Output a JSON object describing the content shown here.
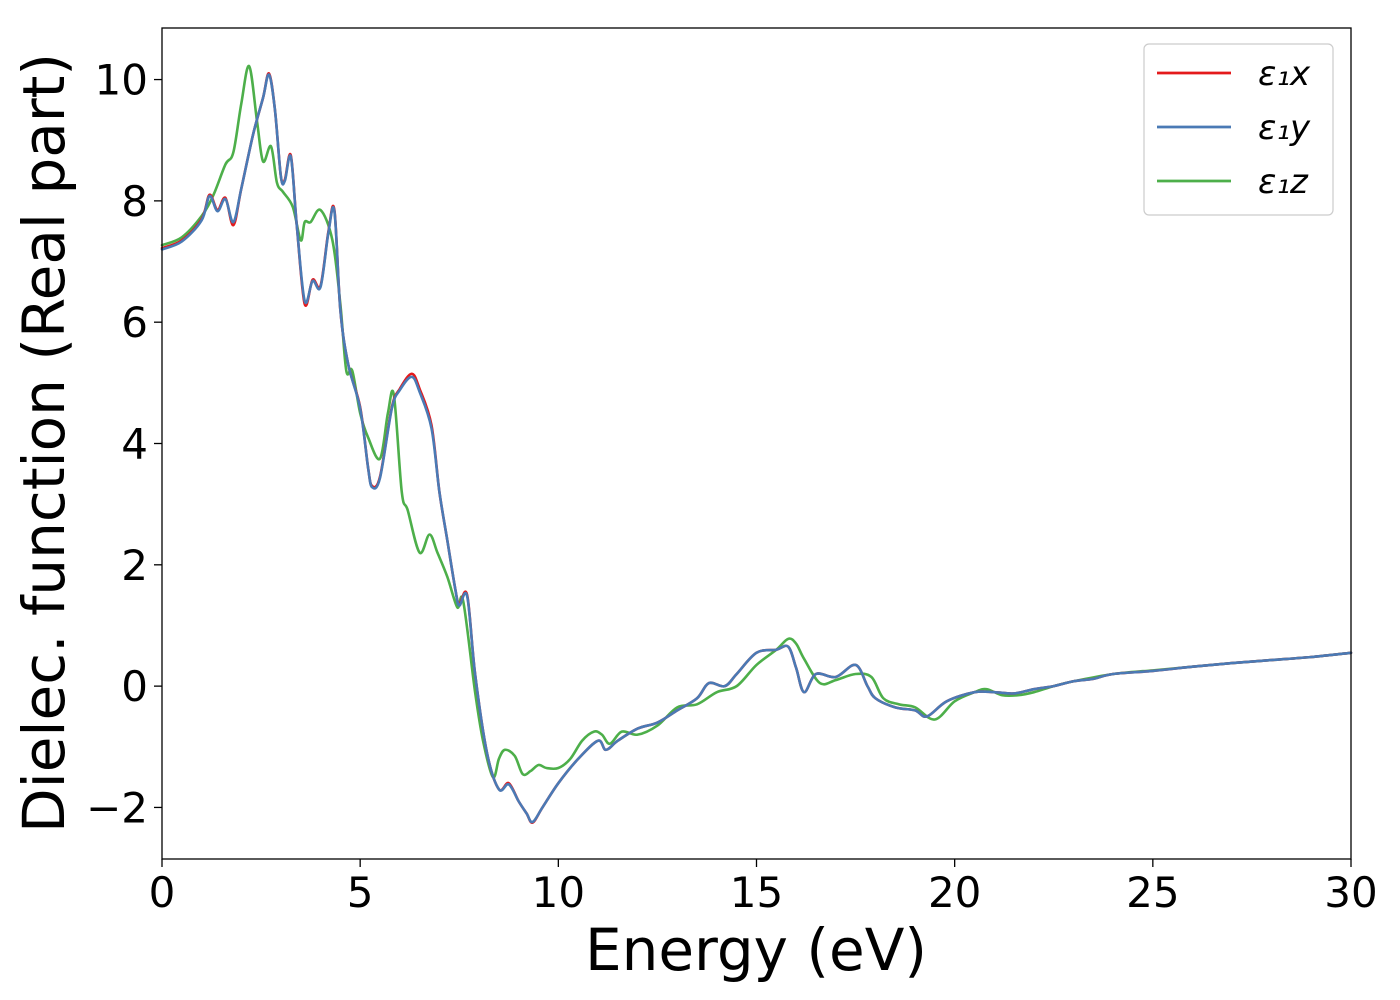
{
  "chart_data": {
    "type": "line",
    "xlabel": "Energy (eV)",
    "ylabel": "Dielec. function (Real part)",
    "xlim": [
      0,
      30
    ],
    "ylim": [
      -2.85,
      10.85
    ],
    "xticks": [
      0,
      5,
      10,
      15,
      20,
      25,
      30
    ],
    "xtick_labels": [
      "0",
      "5",
      "10",
      "15",
      "20",
      "25",
      "30"
    ],
    "yticks": [
      -2,
      0,
      2,
      4,
      6,
      8,
      10
    ],
    "ytick_labels": [
      "−2",
      "0",
      "2",
      "4",
      "6",
      "8",
      "10"
    ],
    "grid": false,
    "legend_position": "top-right",
    "series": [
      {
        "name": "ε₁x",
        "color": "#e41a1c",
        "x": [
          0,
          0.5,
          1.0,
          1.2,
          1.4,
          1.6,
          1.8,
          2.0,
          2.3,
          2.55,
          2.7,
          2.85,
          3.0,
          3.1,
          3.25,
          3.4,
          3.6,
          3.8,
          4.0,
          4.2,
          4.35,
          4.5,
          4.7,
          5.0,
          5.2,
          5.3,
          5.5,
          5.8,
          6.0,
          6.3,
          6.5,
          6.8,
          7.0,
          7.2,
          7.4,
          7.5,
          7.7,
          7.9,
          8.2,
          8.5,
          8.75,
          9.0,
          9.2,
          9.35,
          9.6,
          10.0,
          10.5,
          11.0,
          11.2,
          11.5,
          12.0,
          12.5,
          13.0,
          13.5,
          13.8,
          14.2,
          14.5,
          15.0,
          15.5,
          15.8,
          16.0,
          16.2,
          16.5,
          17.0,
          17.5,
          17.8,
          18.0,
          18.5,
          19.0,
          19.3,
          19.8,
          20.5,
          21.0,
          21.5,
          22.0,
          22.5,
          23.0,
          23.5,
          24.0,
          25.0,
          26.0,
          27.0,
          28.0,
          29.0,
          30.0
        ],
        "y": [
          7.22,
          7.35,
          7.7,
          8.1,
          7.85,
          8.05,
          7.6,
          8.2,
          9.1,
          9.7,
          10.1,
          9.5,
          8.4,
          8.35,
          8.75,
          7.6,
          6.3,
          6.7,
          6.6,
          7.5,
          7.85,
          6.2,
          5.3,
          4.6,
          3.6,
          3.3,
          3.45,
          4.6,
          4.9,
          5.15,
          4.9,
          4.3,
          3.2,
          2.4,
          1.6,
          1.35,
          1.5,
          0.2,
          -1.1,
          -1.7,
          -1.6,
          -1.9,
          -2.1,
          -2.25,
          -2.0,
          -1.6,
          -1.2,
          -0.9,
          -1.05,
          -0.9,
          -0.7,
          -0.6,
          -0.4,
          -0.2,
          0.05,
          0.0,
          0.2,
          0.55,
          0.6,
          0.65,
          0.3,
          -0.1,
          0.2,
          0.15,
          0.35,
          0.0,
          -0.2,
          -0.35,
          -0.4,
          -0.5,
          -0.25,
          -0.1,
          -0.1,
          -0.12,
          -0.05,
          0.0,
          0.08,
          0.12,
          0.2,
          0.25,
          0.32,
          0.38,
          0.43,
          0.48,
          0.55
        ]
      },
      {
        "name": "ε₁y",
        "color": "#4a7ab5",
        "x": [
          0,
          0.5,
          1.0,
          1.2,
          1.4,
          1.6,
          1.8,
          2.0,
          2.3,
          2.55,
          2.7,
          2.85,
          3.0,
          3.1,
          3.25,
          3.4,
          3.6,
          3.8,
          4.0,
          4.2,
          4.35,
          4.5,
          4.7,
          5.0,
          5.2,
          5.3,
          5.5,
          5.8,
          6.0,
          6.3,
          6.5,
          6.8,
          7.0,
          7.2,
          7.4,
          7.5,
          7.7,
          7.9,
          8.2,
          8.5,
          8.75,
          9.0,
          9.2,
          9.35,
          9.6,
          10.0,
          10.5,
          11.0,
          11.2,
          11.5,
          12.0,
          12.5,
          13.0,
          13.5,
          13.8,
          14.2,
          14.5,
          15.0,
          15.5,
          15.8,
          16.0,
          16.2,
          16.5,
          17.0,
          17.5,
          17.8,
          18.0,
          18.5,
          19.0,
          19.3,
          19.8,
          20.5,
          21.0,
          21.5,
          22.0,
          22.5,
          23.0,
          23.5,
          24.0,
          25.0,
          26.0,
          27.0,
          28.0,
          29.0,
          30.0
        ],
        "y": [
          7.2,
          7.33,
          7.68,
          8.08,
          7.83,
          8.03,
          7.65,
          8.2,
          9.1,
          9.7,
          10.08,
          9.5,
          8.4,
          8.33,
          8.73,
          7.6,
          6.35,
          6.68,
          6.58,
          7.48,
          7.83,
          6.2,
          5.3,
          4.58,
          3.6,
          3.28,
          3.43,
          4.58,
          4.88,
          5.1,
          4.85,
          4.25,
          3.2,
          2.4,
          1.6,
          1.33,
          1.48,
          0.2,
          -1.1,
          -1.7,
          -1.62,
          -1.9,
          -2.1,
          -2.24,
          -2.0,
          -1.6,
          -1.2,
          -0.9,
          -1.05,
          -0.9,
          -0.7,
          -0.6,
          -0.4,
          -0.2,
          0.05,
          0.0,
          0.2,
          0.55,
          0.6,
          0.65,
          0.3,
          -0.1,
          0.2,
          0.15,
          0.35,
          0.0,
          -0.2,
          -0.35,
          -0.4,
          -0.5,
          -0.25,
          -0.1,
          -0.1,
          -0.12,
          -0.05,
          0.0,
          0.08,
          0.12,
          0.2,
          0.25,
          0.32,
          0.38,
          0.43,
          0.48,
          0.55
        ]
      },
      {
        "name": "ε₁z",
        "color": "#4daf4a",
        "x": [
          0,
          0.5,
          1.0,
          1.3,
          1.6,
          1.8,
          2.0,
          2.2,
          2.4,
          2.55,
          2.75,
          2.9,
          3.05,
          3.3,
          3.5,
          3.6,
          3.75,
          4.0,
          4.3,
          4.5,
          4.65,
          4.8,
          5.0,
          5.2,
          5.5,
          5.7,
          5.85,
          6.05,
          6.2,
          6.5,
          6.75,
          6.95,
          7.2,
          7.45,
          7.6,
          7.9,
          8.1,
          8.35,
          8.5,
          8.65,
          8.9,
          9.1,
          9.3,
          9.5,
          9.7,
          10.0,
          10.3,
          10.6,
          10.9,
          11.1,
          11.3,
          11.6,
          12.0,
          12.5,
          13.0,
          13.5,
          14.0,
          14.5,
          15.0,
          15.5,
          15.8,
          16.0,
          16.2,
          16.6,
          17.0,
          17.5,
          17.9,
          18.2,
          18.6,
          19.0,
          19.5,
          20.0,
          20.5,
          20.8,
          21.2,
          21.6,
          22.0,
          22.5,
          23.0,
          24.0,
          25.0,
          26.0,
          27.0,
          28.0,
          29.0,
          30.0
        ],
        "y": [
          7.27,
          7.4,
          7.75,
          8.1,
          8.6,
          8.8,
          9.6,
          10.22,
          9.3,
          8.65,
          8.9,
          8.3,
          8.15,
          7.9,
          7.35,
          7.65,
          7.65,
          7.85,
          7.35,
          6.3,
          5.2,
          5.2,
          4.5,
          4.1,
          3.75,
          4.5,
          4.8,
          3.2,
          2.9,
          2.2,
          2.5,
          2.2,
          1.8,
          1.3,
          1.4,
          -0.1,
          -0.9,
          -1.5,
          -1.2,
          -1.05,
          -1.15,
          -1.45,
          -1.4,
          -1.3,
          -1.35,
          -1.35,
          -1.2,
          -0.9,
          -0.75,
          -0.8,
          -0.95,
          -0.75,
          -0.8,
          -0.65,
          -0.35,
          -0.3,
          -0.1,
          0.0,
          0.35,
          0.6,
          0.78,
          0.7,
          0.45,
          0.05,
          0.1,
          0.2,
          0.15,
          -0.2,
          -0.3,
          -0.35,
          -0.55,
          -0.25,
          -0.1,
          -0.05,
          -0.15,
          -0.15,
          -0.1,
          0.0,
          0.08,
          0.2,
          0.26,
          0.32,
          0.38,
          0.43,
          0.48,
          0.55
        ]
      }
    ]
  }
}
